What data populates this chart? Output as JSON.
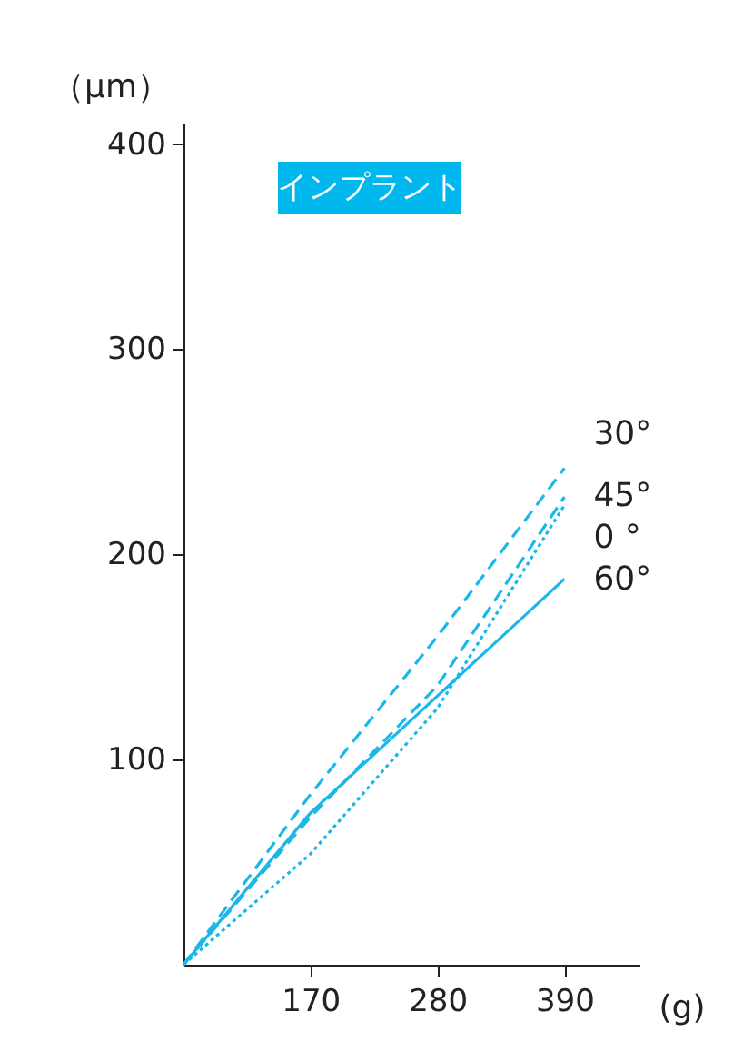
{
  "chart_data": {
    "type": "line",
    "title": "インプラント",
    "ylabel": "（μm）",
    "xlabel": "(g)",
    "x": [
      60,
      170,
      280,
      390
    ],
    "xlim": [
      60,
      455
    ],
    "xticks": [
      170,
      280,
      390
    ],
    "ylim": [
      0,
      410
    ],
    "yticks": [
      100,
      200,
      300,
      400
    ],
    "grid": false,
    "legend": false,
    "marker": "none",
    "series": [
      {
        "name": "30°",
        "color": "#1ab8e8",
        "line_style": "dashed",
        "values": [
          0,
          83,
          160,
          242
        ]
      },
      {
        "name": "45°",
        "color": "#1ab8e8",
        "line_style": "dashed",
        "values": [
          0,
          72,
          136,
          228
        ]
      },
      {
        "name": "0 °",
        "color": "#1ab8e8",
        "line_style": "dotted",
        "values": [
          0,
          54,
          125,
          224
        ]
      },
      {
        "name": "60°",
        "color": "#1ab8e8",
        "line_style": "solid",
        "values": [
          0,
          74,
          131,
          188
        ]
      }
    ]
  }
}
